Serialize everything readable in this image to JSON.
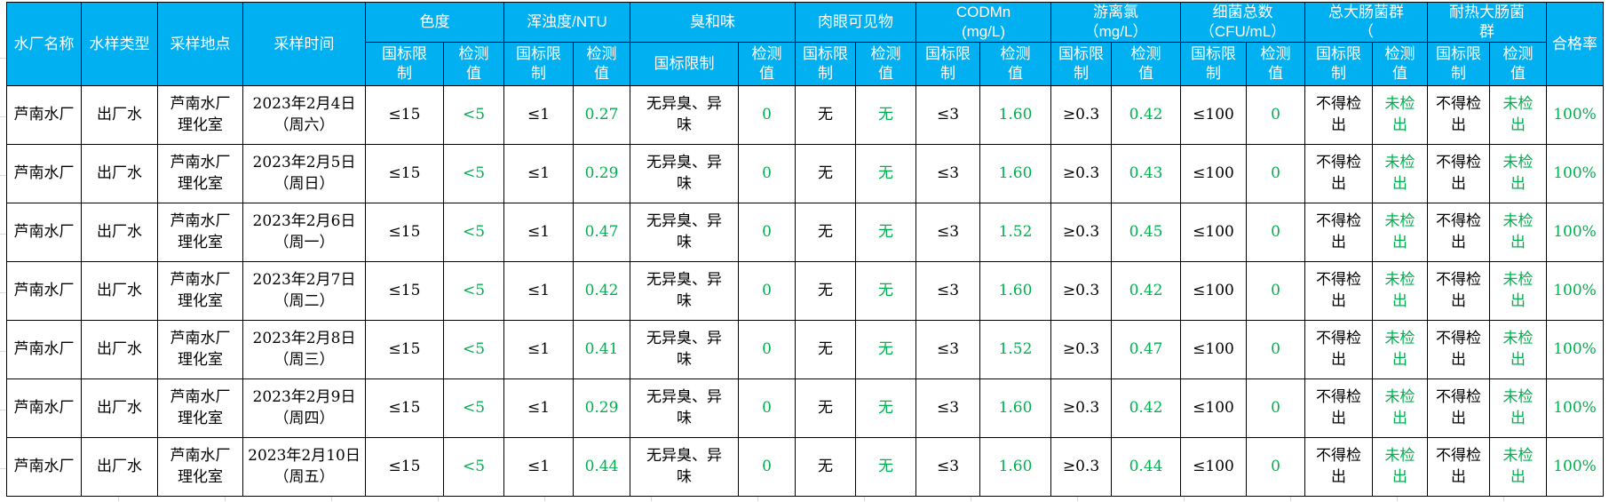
{
  "colors": {
    "header_bg": "#00b0f0",
    "header_text": "#ffffff",
    "value_green": "#00b050",
    "grid": "#000000"
  },
  "header": {
    "static_cols": [
      "水厂名称",
      "水样类型",
      "采样地点",
      "采样时间"
    ],
    "groups": [
      "色度",
      "浑浊度/NTU",
      "臭和味",
      "肉眼可见物",
      "CODMn\n(mg/L)",
      "游离氯\n（mg/L）",
      "细菌总数\n（CFU/mL）",
      "总大肠菌群\n（",
      "耐热大肠菌\n群"
    ],
    "sub": {
      "limit_wrapped": "国标限\n制",
      "limit_wide": "国标限制",
      "value": "检测\n值"
    },
    "pass_rate": "合格率"
  },
  "rows": [
    [
      "芦南水厂",
      "出厂水",
      "芦南水厂\n理化室",
      "2023年2月4日\n（周六）",
      "≤15",
      "<5",
      "≤1",
      "0.27",
      "无异臭、异\n味",
      "0",
      "无",
      "无",
      "≤3",
      "1.60",
      "≥0.3",
      "0.42",
      "≤100",
      "0",
      "不得检\n出",
      "未检\n出",
      "不得检\n出",
      "未检\n出",
      "100%"
    ],
    [
      "芦南水厂",
      "出厂水",
      "芦南水厂\n理化室",
      "2023年2月5日\n（周日）",
      "≤15",
      "<5",
      "≤1",
      "0.29",
      "无异臭、异\n味",
      "0",
      "无",
      "无",
      "≤3",
      "1.60",
      "≥0.3",
      "0.43",
      "≤100",
      "0",
      "不得检\n出",
      "未检\n出",
      "不得检\n出",
      "未检\n出",
      "100%"
    ],
    [
      "芦南水厂",
      "出厂水",
      "芦南水厂\n理化室",
      "2023年2月6日\n（周一）",
      "≤15",
      "<5",
      "≤1",
      "0.47",
      "无异臭、异\n味",
      "0",
      "无",
      "无",
      "≤3",
      "1.52",
      "≥0.3",
      "0.45",
      "≤100",
      "0",
      "不得检\n出",
      "未检\n出",
      "不得检\n出",
      "未检\n出",
      "100%"
    ],
    [
      "芦南水厂",
      "出厂水",
      "芦南水厂\n理化室",
      "2023年2月7日\n（周二）",
      "≤15",
      "<5",
      "≤1",
      "0.42",
      "无异臭、异\n味",
      "0",
      "无",
      "无",
      "≤3",
      "1.60",
      "≥0.3",
      "0.42",
      "≤100",
      "0",
      "不得检\n出",
      "未检\n出",
      "不得检\n出",
      "未检\n出",
      "100%"
    ],
    [
      "芦南水厂",
      "出厂水",
      "芦南水厂\n理化室",
      "2023年2月8日\n（周三）",
      "≤15",
      "<5",
      "≤1",
      "0.41",
      "无异臭、异\n味",
      "0",
      "无",
      "无",
      "≤3",
      "1.52",
      "≥0.3",
      "0.47",
      "≤100",
      "0",
      "不得检\n出",
      "未检\n出",
      "不得检\n出",
      "未检\n出",
      "100%"
    ],
    [
      "芦南水厂",
      "出厂水",
      "芦南水厂\n理化室",
      "2023年2月9日\n（周四）",
      "≤15",
      "<5",
      "≤1",
      "0.29",
      "无异臭、异\n味",
      "0",
      "无",
      "无",
      "≤3",
      "1.60",
      "≥0.3",
      "0.42",
      "≤100",
      "0",
      "不得检\n出",
      "未检\n出",
      "不得检\n出",
      "未检\n出",
      "100%"
    ],
    [
      "芦南水厂",
      "出厂水",
      "芦南水厂\n理化室",
      "2023年2月10日\n（周五）",
      "≤15",
      "<5",
      "≤1",
      "0.44",
      "无异臭、异\n味",
      "0",
      "无",
      "无",
      "≤3",
      "1.60",
      "≥0.3",
      "0.44",
      "≤100",
      "0",
      "不得检\n出",
      "未检\n出",
      "不得检\n出",
      "未检\n出",
      "100%"
    ]
  ]
}
